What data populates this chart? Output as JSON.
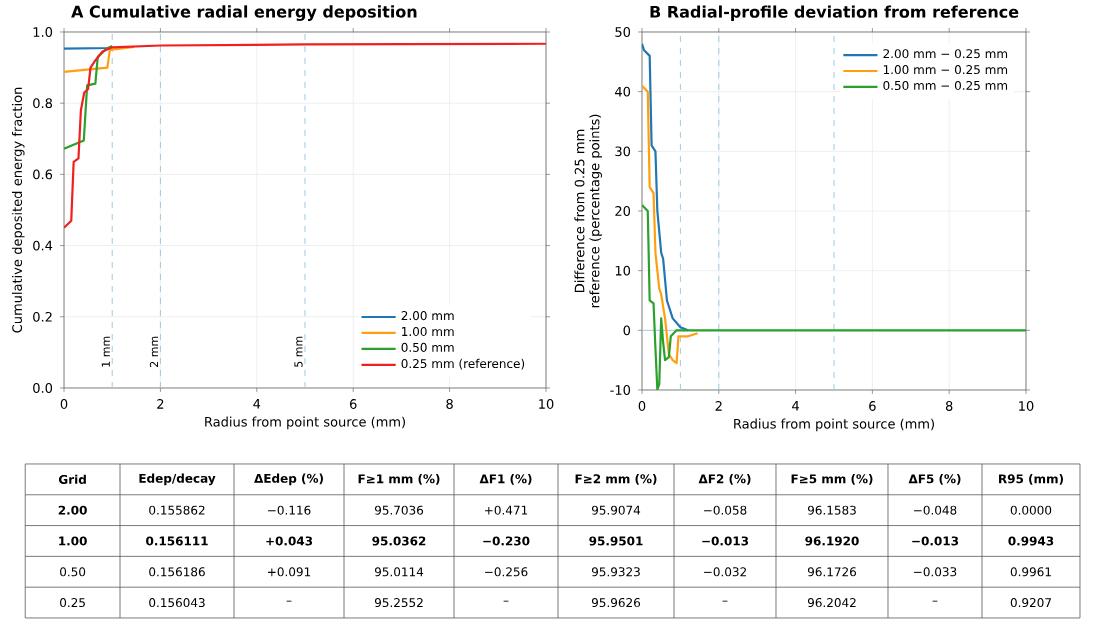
{
  "chart_data": [
    {
      "type": "line",
      "title": "A   Cumulative radial energy deposition",
      "xlabel": "Radius from point source (mm)",
      "ylabel": "Cumulative deposited energy fraction",
      "xlim": [
        0,
        10
      ],
      "ylim": [
        0,
        1
      ],
      "xticks": [
        0,
        2,
        4,
        6,
        8,
        10
      ],
      "yticks": [
        {
          "value": 0,
          "label": "0.0"
        },
        0.2,
        0.4,
        0.6,
        0.8,
        {
          "value": 1,
          "label": "1.0"
        }
      ],
      "grid": true,
      "legend": "bottom right",
      "line_style": "solid",
      "series": [
        {
          "name": "2.00 mm",
          "color": "#1f77b4",
          "x": [
            0,
            0.95,
            1.0
          ],
          "values": [
            0.953,
            0.955,
            0.96
          ]
        },
        {
          "name": "1.00 mm",
          "color": "#ff9f0f",
          "x": [
            0,
            0.9,
            0.95,
            1.45
          ],
          "values": [
            0.888,
            0.9,
            0.95,
            0.958
          ]
        },
        {
          "name": "0.50 mm",
          "color": "#2ca02c",
          "x": [
            0,
            0.41,
            0.48,
            0.65,
            0.7,
            0.9,
            1.0
          ],
          "values": [
            0.672,
            0.695,
            0.85,
            0.855,
            0.93,
            0.955,
            0.96
          ]
        },
        {
          "name": "0.25 mm (reference)",
          "color": "#f02020",
          "x": [
            0,
            0.15,
            0.2,
            0.3,
            0.35,
            0.42,
            0.5,
            0.55,
            0.65,
            0.8,
            1.0,
            2,
            5,
            10
          ],
          "values": [
            0.45,
            0.47,
            0.635,
            0.645,
            0.78,
            0.83,
            0.84,
            0.9,
            0.92,
            0.945,
            0.957,
            0.962,
            0.965,
            0.967
          ]
        }
      ],
      "ref_lines": [
        {
          "axis": "x",
          "value": 1,
          "label": "1 mm",
          "color": "#9ecae1",
          "line_style": "dashed"
        },
        {
          "axis": "x",
          "value": 2,
          "label": "2 mm",
          "color": "#9ecae1",
          "line_style": "dashed"
        },
        {
          "axis": "x",
          "value": 5,
          "label": "5 mm",
          "color": "#9ecae1",
          "line_style": "dashed"
        }
      ]
    },
    {
      "type": "line",
      "title": "B   Radial-profile deviation from reference",
      "xlabel": "Radius from point source (mm)",
      "ylabel": "Difference from 0.25 mm reference (percentage points)",
      "xlim": [
        0,
        10
      ],
      "ylim": [
        -10,
        50
      ],
      "xticks": [
        0,
        2,
        4,
        6,
        8,
        10
      ],
      "yticks": [
        -10,
        0,
        10,
        20,
        30,
        40,
        50
      ],
      "grid": true,
      "legend": "top right",
      "line_style": "solid",
      "series": [
        {
          "name": "2.00 mm − 0.25 mm",
          "color": "#1f77b4",
          "x": [
            0,
            0.05,
            0.2,
            0.25,
            0.35,
            0.4,
            0.5,
            0.55,
            0.65,
            0.8,
            1.0,
            1.2
          ],
          "values": [
            48,
            47,
            46,
            31,
            30,
            20,
            13,
            12,
            5,
            2,
            0.5,
            0
          ]
        },
        {
          "name": "1.00 mm − 0.25 mm",
          "color": "#ff9f0f",
          "x": [
            0,
            0.15,
            0.2,
            0.3,
            0.35,
            0.45,
            0.5,
            0.6,
            0.7,
            0.8,
            0.9,
            0.95,
            1.2,
            1.45
          ],
          "values": [
            41,
            40,
            24,
            23,
            13,
            7,
            6,
            2,
            -4,
            -5,
            -5.5,
            -1,
            -1,
            -0.5
          ]
        },
        {
          "name": "0.50 mm − 0.25 mm",
          "color": "#2ca02c",
          "x": [
            0,
            0.15,
            0.2,
            0.3,
            0.35,
            0.4,
            0.45,
            0.5,
            0.55,
            0.6,
            0.7,
            0.75,
            0.9,
            10
          ],
          "values": [
            21,
            20,
            5,
            4.5,
            -3,
            -10,
            -9,
            2,
            -2,
            -5,
            -4.5,
            -1,
            0,
            0
          ]
        }
      ],
      "ref_lines": [
        {
          "axis": "x",
          "value": 1,
          "color": "#9ecae1",
          "line_style": "dashed"
        },
        {
          "axis": "x",
          "value": 2,
          "color": "#9ecae1",
          "line_style": "dashed"
        },
        {
          "axis": "x",
          "value": 5,
          "color": "#9ecae1",
          "line_style": "dashed"
        },
        {
          "axis": "y",
          "value": 0,
          "color": "#9ecae1",
          "line_style": "solid"
        }
      ]
    },
    {
      "type": "other",
      "categories": [
        "Grid",
        "Edep/decay",
        "ΔEdep (%)",
        "F≥1 mm (%)",
        "ΔF1 (%)",
        "F≥2 mm (%)",
        "ΔF2 (%)",
        "F≥5 mm (%)",
        "ΔF5 (%)",
        "R95 (mm)"
      ],
      "cell_labels": [
        [
          "**2.00**",
          "0.155862",
          "−0.116",
          "95.7036",
          "+0.471",
          "95.9074",
          "−0.058",
          "96.1583",
          "−0.048",
          "0.0000"
        ],
        [
          "**1.00**",
          "**0.156111**",
          "**+0.043**",
          "**95.0362**",
          "**−0.230**",
          "**95.9501**",
          "**−0.013**",
          "**96.1920**",
          "**−0.013**",
          "**0.9943**"
        ],
        [
          "0.50",
          "0.156186",
          "+0.091",
          "95.0114",
          "−0.256",
          "95.9323",
          "−0.032",
          "96.1726",
          "−0.033",
          "0.9961"
        ],
        [
          "0.25",
          "0.156043",
          "–",
          "95.2552",
          "–",
          "95.9626",
          "–",
          "96.2042",
          "–",
          "0.9207"
        ]
      ]
    }
  ]
}
